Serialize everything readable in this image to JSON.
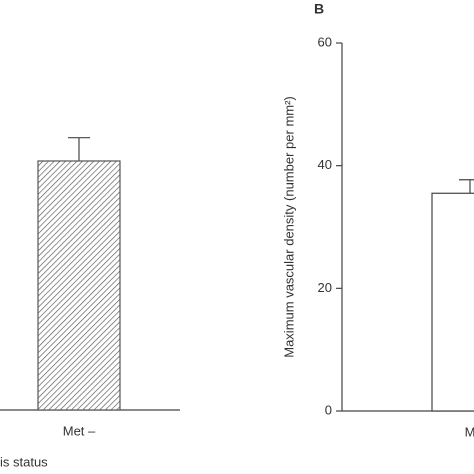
{
  "chart_data": [
    {
      "type": "bar",
      "categories": [
        "Met –"
      ],
      "values": [
        40.6
      ],
      "errors": [
        3.8
      ],
      "xlabel": "is status",
      "ylim": [
        0,
        60
      ],
      "hatch": true,
      "color": "#555"
    },
    {
      "type": "bar",
      "panel": "B",
      "ylabel": "Maximum vascular density (number per mm²)",
      "categories": [
        "M"
      ],
      "values": [
        35.5
      ],
      "errors": [
        2.2
      ],
      "ylim": [
        0,
        60
      ],
      "yticks": [
        0,
        20,
        40,
        60
      ],
      "hatch": false,
      "color": "#444"
    }
  ]
}
